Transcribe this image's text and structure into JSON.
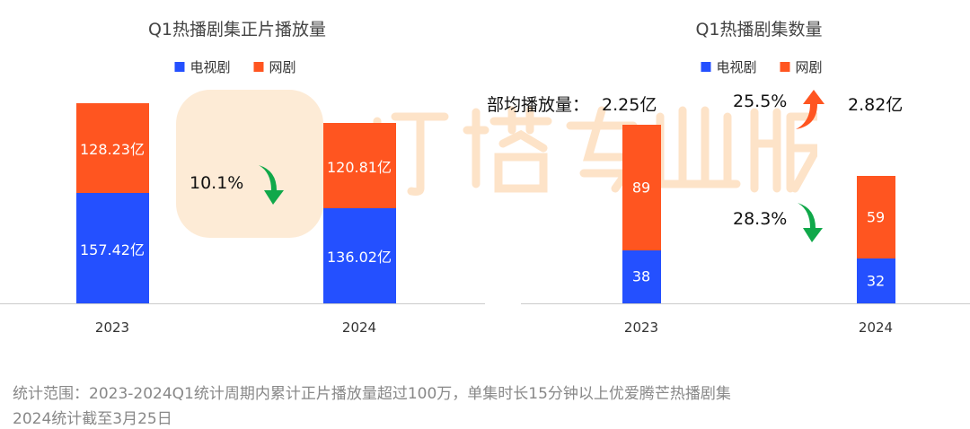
{
  "watermark": "灯塔专业版",
  "colors": {
    "tv": "#2450ff",
    "web": "#ff5520",
    "down": "#10a84a",
    "up": "#ff5520"
  },
  "chart_data": [
    {
      "type": "bar",
      "stacked": true,
      "title": "Q1热播剧集正片播放量",
      "categories": [
        "2023",
        "2024"
      ],
      "legend": [
        "电视剧",
        "网剧"
      ],
      "legend_position": "top",
      "series": [
        {
          "name": "电视剧",
          "values": [
            157.42,
            136.02
          ],
          "labels": [
            "157.42亿",
            "136.02亿"
          ]
        },
        {
          "name": "网剧",
          "values": [
            128.23,
            120.81
          ],
          "labels": [
            "128.23亿",
            "120.81亿"
          ]
        }
      ],
      "annotations": [
        {
          "text": "10.1%",
          "direction": "down"
        }
      ]
    },
    {
      "type": "bar",
      "stacked": true,
      "title": "Q1热播剧集数量",
      "categories": [
        "2023",
        "2024"
      ],
      "legend": [
        "电视剧",
        "网剧"
      ],
      "legend_position": "top",
      "series": [
        {
          "name": "电视剧",
          "values": [
            38,
            32
          ],
          "labels": [
            "38",
            "32"
          ]
        },
        {
          "name": "网剧",
          "values": [
            89,
            59
          ],
          "labels": [
            "89",
            "59"
          ]
        }
      ],
      "annotations": [
        {
          "text": "部均播放量：",
          "type": "label"
        },
        {
          "text": "2.25亿",
          "type": "value"
        },
        {
          "text": "25.5%",
          "direction": "up"
        },
        {
          "text": "2.82亿",
          "type": "value"
        },
        {
          "text": "28.3%",
          "direction": "down"
        }
      ]
    }
  ],
  "footnote": [
    "统计范围：2023-2024Q1统计周期内累计正片播放量超过100万，单集时长15分钟以上优爱腾芒热播剧集",
    "2024统计截至3月25日"
  ]
}
